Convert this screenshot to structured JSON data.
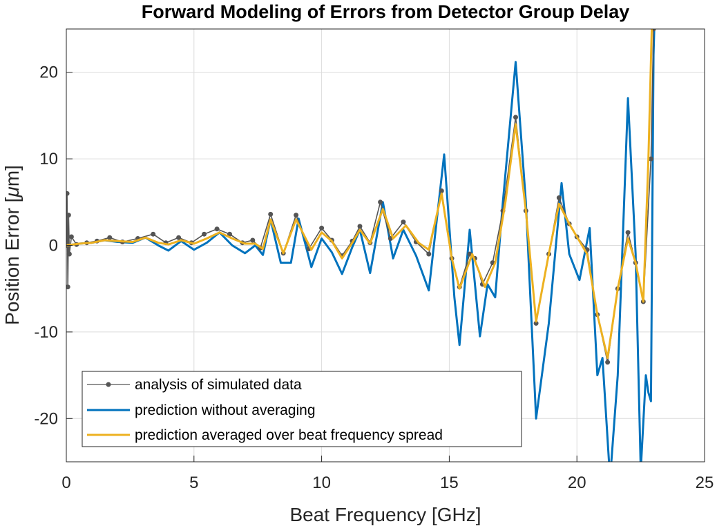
{
  "chart_data": {
    "type": "line",
    "title": "Forward Modeling of Errors from Detector Group Delay",
    "xlabel": "Beat Frequency [GHz]",
    "ylabel_prefix": "Position Error [",
    "ylabel_mu": "μ",
    "ylabel_suffix": "m]",
    "xlim": [
      0,
      25
    ],
    "ylim": [
      -25,
      25
    ],
    "xticks": [
      0,
      5,
      10,
      15,
      20,
      25
    ],
    "xtick_labels": [
      "0",
      "5",
      "10",
      "15",
      "20",
      "25"
    ],
    "yticks": [
      -20,
      -10,
      0,
      10,
      20
    ],
    "ytick_labels": [
      "-20",
      "-10",
      "0",
      "10",
      "20"
    ],
    "grid": true,
    "legend_position": "bottom-left",
    "series": [
      {
        "name": "analysis of simulated data",
        "color": "#555555",
        "marker": "dot",
        "points": [
          [
            0,
            0
          ],
          [
            0.03,
            6
          ],
          [
            0.06,
            -4.8
          ],
          [
            0.09,
            3.5
          ],
          [
            0.12,
            -1
          ],
          [
            0.2,
            1
          ],
          [
            0.4,
            0.1
          ],
          [
            0.8,
            0.3
          ],
          [
            1.2,
            0.5
          ],
          [
            1.7,
            0.9
          ],
          [
            2.2,
            0.4
          ],
          [
            2.8,
            0.8
          ],
          [
            3.4,
            1.3
          ],
          [
            3.9,
            0.3
          ],
          [
            4.4,
            0.9
          ],
          [
            4.9,
            0.3
          ],
          [
            5.4,
            1.3
          ],
          [
            5.9,
            1.9
          ],
          [
            6.4,
            1.3
          ],
          [
            6.9,
            0.3
          ],
          [
            7.3,
            0.6
          ],
          [
            7.6,
            -0.3
          ],
          [
            8.0,
            3.6
          ],
          [
            8.5,
            -0.9
          ],
          [
            9.0,
            3.5
          ],
          [
            9.5,
            -0.4
          ],
          [
            10.0,
            2.0
          ],
          [
            10.4,
            0.6
          ],
          [
            10.8,
            -1.2
          ],
          [
            11.2,
            0.5
          ],
          [
            11.5,
            2.2
          ],
          [
            11.9,
            0.3
          ],
          [
            12.3,
            5.0
          ],
          [
            12.7,
            0.8
          ],
          [
            13.2,
            2.7
          ],
          [
            13.7,
            0.4
          ],
          [
            14.2,
            -1.0
          ],
          [
            14.7,
            6.3
          ],
          [
            15.1,
            -1.5
          ],
          [
            15.4,
            -4.8
          ],
          [
            15.8,
            -1.0
          ],
          [
            16.0,
            -1.5
          ],
          [
            16.3,
            -4.5
          ],
          [
            16.7,
            -2.0
          ],
          [
            17.1,
            4.0
          ],
          [
            17.6,
            14.8
          ],
          [
            18.0,
            4.0
          ],
          [
            18.4,
            -9.0
          ],
          [
            18.9,
            -1.0
          ],
          [
            19.3,
            5.5
          ],
          [
            19.7,
            2.5
          ],
          [
            20.0,
            1.0
          ],
          [
            20.4,
            -0.5
          ],
          [
            20.8,
            -8.0
          ],
          [
            21.2,
            -13.5
          ],
          [
            21.6,
            -5.0
          ],
          [
            22.0,
            1.5
          ],
          [
            22.3,
            -2.0
          ],
          [
            22.6,
            -6.5
          ],
          [
            22.9,
            10.0
          ],
          [
            23.0,
            25.0
          ]
        ]
      },
      {
        "name": "prediction without averaging",
        "color": "#0072BD",
        "marker": "none",
        "points": [
          [
            0,
            0
          ],
          [
            0.5,
            0.2
          ],
          [
            1,
            0.3
          ],
          [
            1.5,
            0.6
          ],
          [
            2,
            0.4
          ],
          [
            2.6,
            0.3
          ],
          [
            3.1,
            0.9
          ],
          [
            3.6,
            0.0
          ],
          [
            4.0,
            -0.6
          ],
          [
            4.5,
            0.5
          ],
          [
            5.0,
            -0.5
          ],
          [
            5.5,
            0.3
          ],
          [
            6.0,
            1.5
          ],
          [
            6.5,
            0.0
          ],
          [
            7.0,
            -0.9
          ],
          [
            7.4,
            0.0
          ],
          [
            7.7,
            -1.1
          ],
          [
            8.0,
            3.0
          ],
          [
            8.4,
            -2.0
          ],
          [
            8.8,
            -2.0
          ],
          [
            9.1,
            3.1
          ],
          [
            9.6,
            -2.5
          ],
          [
            10.0,
            0.8
          ],
          [
            10.4,
            -0.8
          ],
          [
            10.8,
            -3.3
          ],
          [
            11.2,
            -0.2
          ],
          [
            11.5,
            1.8
          ],
          [
            11.9,
            -3.2
          ],
          [
            12.4,
            5.0
          ],
          [
            12.8,
            -1.5
          ],
          [
            13.2,
            1.8
          ],
          [
            13.7,
            -1.2
          ],
          [
            14.2,
            -5.2
          ],
          [
            14.8,
            10.5
          ],
          [
            15.2,
            -6.0
          ],
          [
            15.4,
            -11.5
          ],
          [
            15.8,
            1.8
          ],
          [
            16.2,
            -10.5
          ],
          [
            16.5,
            -4.5
          ],
          [
            16.8,
            -6.0
          ],
          [
            17.1,
            5.0
          ],
          [
            17.6,
            21.2
          ],
          [
            18.0,
            5.0
          ],
          [
            18.4,
            -20.0
          ],
          [
            18.9,
            -9.0
          ],
          [
            19.4,
            7.2
          ],
          [
            19.7,
            -1.0
          ],
          [
            20.1,
            -4.0
          ],
          [
            20.5,
            2.0
          ],
          [
            20.8,
            -15.0
          ],
          [
            21.0,
            -13.0
          ],
          [
            21.3,
            -27.0
          ],
          [
            21.6,
            -15.0
          ],
          [
            22.0,
            17.0
          ],
          [
            22.3,
            -1.0
          ],
          [
            22.5,
            -26.0
          ],
          [
            22.7,
            -15.0
          ],
          [
            22.8,
            -17.0
          ],
          [
            22.9,
            -18.0
          ],
          [
            23.0,
            22.0
          ],
          [
            23.05,
            27.0
          ]
        ]
      },
      {
        "name": "prediction averaged over beat frequency spread",
        "color": "#EDB120",
        "marker": "none",
        "points": [
          [
            0,
            0
          ],
          [
            0.5,
            0.2
          ],
          [
            1,
            0.3
          ],
          [
            1.5,
            0.6
          ],
          [
            2,
            0.5
          ],
          [
            2.6,
            0.4
          ],
          [
            3.1,
            0.9
          ],
          [
            3.6,
            0.3
          ],
          [
            4.0,
            0.1
          ],
          [
            4.5,
            0.6
          ],
          [
            5.0,
            0.2
          ],
          [
            5.5,
            0.8
          ],
          [
            6.0,
            1.5
          ],
          [
            6.5,
            0.8
          ],
          [
            7.0,
            0.2
          ],
          [
            7.4,
            0.2
          ],
          [
            7.7,
            -0.4
          ],
          [
            8.0,
            3.0
          ],
          [
            8.5,
            -0.9
          ],
          [
            9.0,
            3.0
          ],
          [
            9.6,
            -0.5
          ],
          [
            10.0,
            1.5
          ],
          [
            10.4,
            0.5
          ],
          [
            10.8,
            -1.5
          ],
          [
            11.2,
            0.3
          ],
          [
            11.5,
            1.8
          ],
          [
            11.9,
            0.2
          ],
          [
            12.4,
            4.2
          ],
          [
            12.8,
            0.8
          ],
          [
            13.3,
            2.3
          ],
          [
            13.8,
            0.3
          ],
          [
            14.2,
            -0.5
          ],
          [
            14.7,
            6.0
          ],
          [
            15.1,
            -1.5
          ],
          [
            15.4,
            -5.0
          ],
          [
            15.9,
            -1.0
          ],
          [
            16.4,
            -4.8
          ],
          [
            16.8,
            -2.0
          ],
          [
            17.2,
            5.0
          ],
          [
            17.6,
            14.0
          ],
          [
            18.0,
            4.0
          ],
          [
            18.4,
            -8.8
          ],
          [
            18.9,
            -1.0
          ],
          [
            19.3,
            4.8
          ],
          [
            19.7,
            2.5
          ],
          [
            20.0,
            1.0
          ],
          [
            20.4,
            -1.0
          ],
          [
            20.8,
            -8.0
          ],
          [
            21.2,
            -13.0
          ],
          [
            21.6,
            -5.0
          ],
          [
            22.0,
            0.8
          ],
          [
            22.3,
            -2.0
          ],
          [
            22.6,
            -6.5
          ],
          [
            22.8,
            10.0
          ],
          [
            22.95,
            27.0
          ]
        ]
      }
    ]
  }
}
